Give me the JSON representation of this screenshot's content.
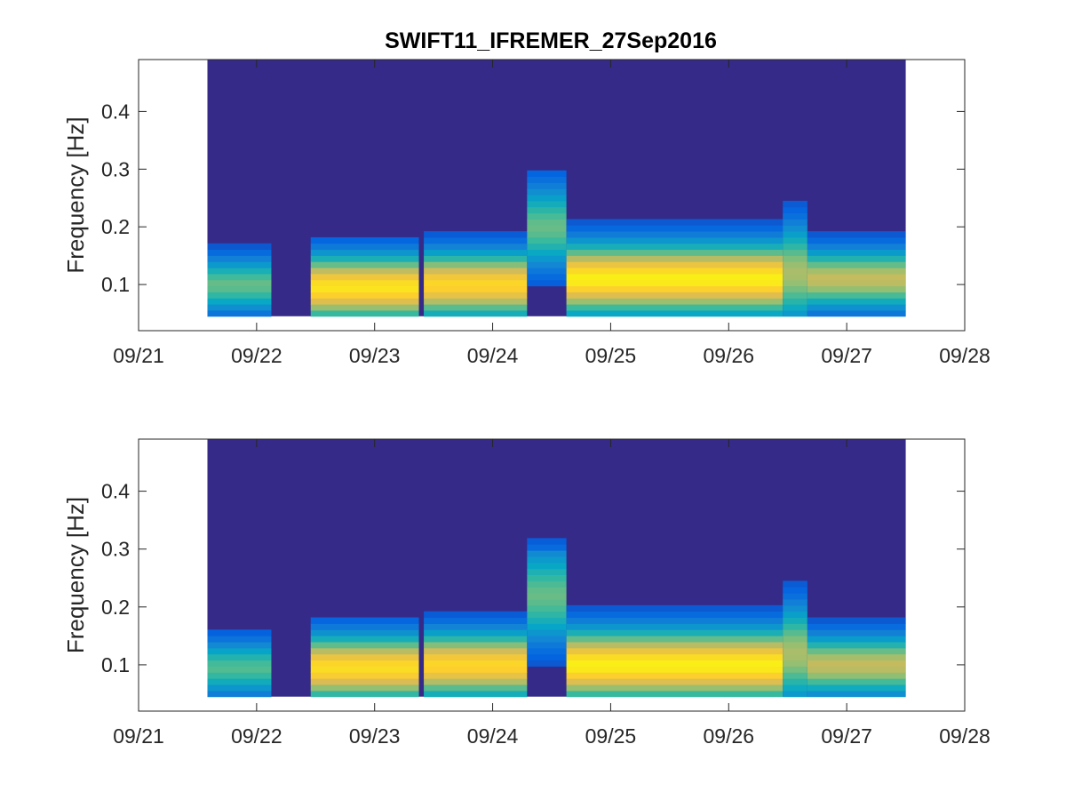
{
  "figure_title": "SWIFT11_IFREMER_27Sep2016",
  "colors": {
    "background_fill": "#352A87",
    "colormap": [
      "#352A87",
      "#0363E1",
      "#1485D4",
      "#06A7C6",
      "#38B99E",
      "#92BF73",
      "#D9BA56",
      "#FCCE2E",
      "#F9FB0E"
    ]
  },
  "chart_data": [
    {
      "type": "heatmap",
      "title": "SWIFT11_IFREMER_27Sep2016",
      "xlabel": "",
      "ylabel": "Frequency [Hz]",
      "x_ticks": [
        "09/21",
        "09/22",
        "09/23",
        "09/24",
        "09/25",
        "09/26",
        "09/27",
        "09/28"
      ],
      "y_ticks": [
        "0.1",
        "0.2",
        "0.3",
        "0.4"
      ],
      "xlim": [
        "2016-09-21",
        "2016-09-28"
      ],
      "ylim": [
        0.02,
        0.49
      ],
      "data_extent": {
        "x": [
          "2016-09-21 14:00",
          "2016-09-27 12:00"
        ],
        "y": [
          0.045,
          0.49
        ]
      },
      "grid": false,
      "energy_segments": [
        {
          "start": "2016-09-21 14:00",
          "end": "2016-09-22 03:00",
          "peak_frequency_hz": 0.1,
          "peak_energy": 0.45,
          "bandwidth_hz": 0.045
        },
        {
          "start": "2016-09-22 11:00",
          "end": "2016-09-23 09:00",
          "peak_frequency_hz": 0.095,
          "peak_energy": 0.82,
          "bandwidth_hz": 0.055
        },
        {
          "start": "2016-09-23 10:00",
          "end": "2016-09-24 07:00",
          "peak_frequency_hz": 0.1,
          "peak_energy": 0.78,
          "bandwidth_hz": 0.055
        },
        {
          "start": "2016-09-24 07:00",
          "end": "2016-09-24 15:00",
          "peak_frequency_hz": 0.2,
          "peak_energy": 0.45,
          "bandwidth_hz": 0.07
        },
        {
          "start": "2016-09-24 15:00",
          "end": "2016-09-26 11:00",
          "peak_frequency_hz": 0.11,
          "peak_energy": 0.85,
          "bandwidth_hz": 0.06
        },
        {
          "start": "2016-09-26 11:00",
          "end": "2016-09-26 16:00",
          "peak_frequency_hz": 0.12,
          "peak_energy": 0.55,
          "bandwidth_hz": 0.08
        },
        {
          "start": "2016-09-26 16:00",
          "end": "2016-09-27 12:00",
          "peak_frequency_hz": 0.11,
          "peak_energy": 0.6,
          "bandwidth_hz": 0.05
        }
      ]
    },
    {
      "type": "heatmap",
      "title": "",
      "xlabel": "",
      "ylabel": "Frequency [Hz]",
      "x_ticks": [
        "09/21",
        "09/22",
        "09/23",
        "09/24",
        "09/25",
        "09/26",
        "09/27",
        "09/28"
      ],
      "y_ticks": [
        "0.1",
        "0.2",
        "0.3",
        "0.4"
      ],
      "xlim": [
        "2016-09-21",
        "2016-09-28"
      ],
      "ylim": [
        0.02,
        0.49
      ],
      "data_extent": {
        "x": [
          "2016-09-21 14:00",
          "2016-09-27 12:00"
        ],
        "y": [
          0.045,
          0.49
        ]
      },
      "grid": false,
      "energy_segments": [
        {
          "start": "2016-09-21 14:00",
          "end": "2016-09-22 03:00",
          "peak_frequency_hz": 0.095,
          "peak_energy": 0.42,
          "bandwidth_hz": 0.045
        },
        {
          "start": "2016-09-22 11:00",
          "end": "2016-09-23 09:00",
          "peak_frequency_hz": 0.095,
          "peak_energy": 0.8,
          "bandwidth_hz": 0.055
        },
        {
          "start": "2016-09-23 10:00",
          "end": "2016-09-24 07:00",
          "peak_frequency_hz": 0.1,
          "peak_energy": 0.78,
          "bandwidth_hz": 0.055
        },
        {
          "start": "2016-09-24 07:00",
          "end": "2016-09-24 15:00",
          "peak_frequency_hz": 0.22,
          "peak_energy": 0.45,
          "bandwidth_hz": 0.08
        },
        {
          "start": "2016-09-24 15:00",
          "end": "2016-09-26 11:00",
          "peak_frequency_hz": 0.1,
          "peak_energy": 0.85,
          "bandwidth_hz": 0.06
        },
        {
          "start": "2016-09-26 11:00",
          "end": "2016-09-26 16:00",
          "peak_frequency_hz": 0.12,
          "peak_energy": 0.55,
          "bandwidth_hz": 0.08
        },
        {
          "start": "2016-09-26 16:00",
          "end": "2016-09-27 12:00",
          "peak_frequency_hz": 0.1,
          "peak_energy": 0.6,
          "bandwidth_hz": 0.05
        }
      ]
    }
  ]
}
